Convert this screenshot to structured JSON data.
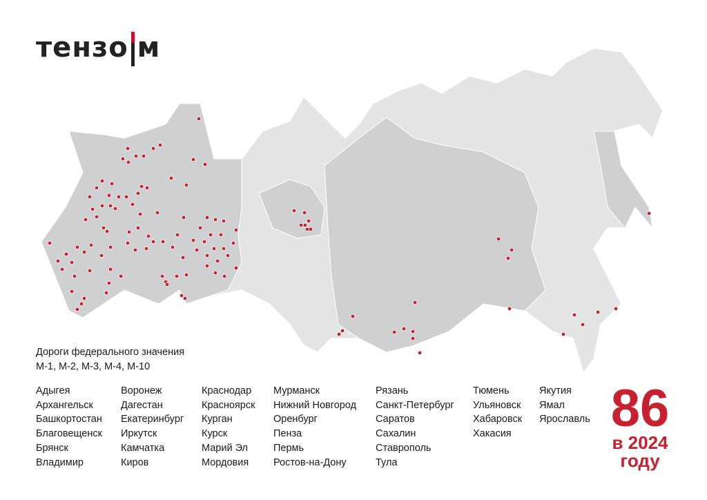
{
  "logo": {
    "text_left": "тензо",
    "text_right": "м"
  },
  "legend": {
    "line1": "Дороги федерального значения",
    "line2": "М-1, М-2, М-3, М-4, М-10"
  },
  "columns": [
    [
      "Адыгея",
      "Архангельск",
      "Башкортостан",
      "Благовещенск",
      "Брянск",
      "Владимир"
    ],
    [
      "Воронеж",
      "Дагестан",
      "Екатеринбург",
      "Иркутск",
      "Камчатка",
      "Киров"
    ],
    [
      "Краснодар",
      "Красноярск",
      "Курган",
      "Курск",
      "Марий Эл",
      "Мордовия"
    ],
    [
      "Мурманск",
      "Нижний Новгород",
      "Оренбург",
      "Пенза",
      "Пермь",
      "Ростов-на-Дону"
    ],
    [
      "Рязань",
      "Санкт-Петербург",
      "Саратов",
      "Сахалин",
      "Ставрополь",
      "Тула"
    ],
    [
      "Тюмень",
      "Ульяновск",
      "Хабаровск",
      "Хакасия"
    ],
    [
      "Якутия",
      "Ямал",
      "Ярославль"
    ]
  ],
  "counter": {
    "number": "86",
    "line1": "в 2024",
    "line2": "году"
  },
  "colors": {
    "accent": "#c8202e",
    "land_light": "#e3e4e4",
    "land_dark": "#cfd0d1",
    "text": "#1a1a1a"
  }
}
